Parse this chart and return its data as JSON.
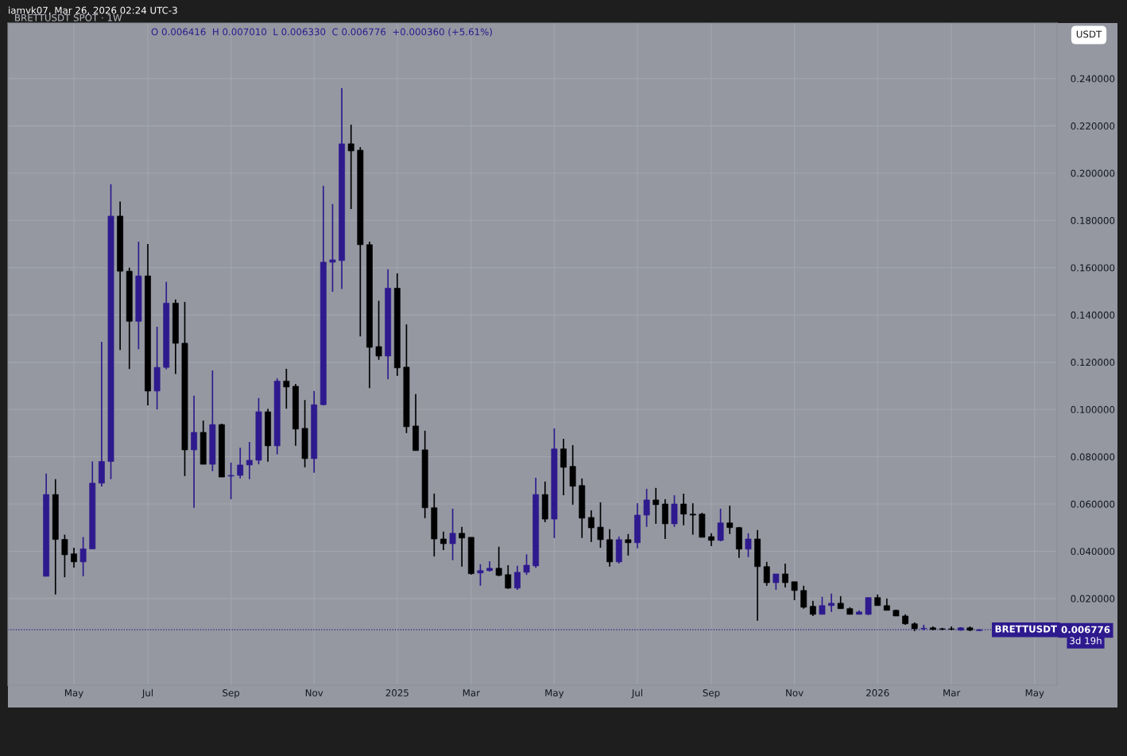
{
  "chart_data": {
    "type": "candlestick",
    "title": "BRETTUSDT SPOT · 1W",
    "annotations": [
      "iamvk07, Mar 26, 2026 02:24 UTC-3",
      "O 0.006416  H 0.007010  L 0.006330  C 0.006776  +0.000360 (+5.61%)",
      "USDT",
      "0.006776",
      "3d 19h"
    ],
    "x": [
      "2024-04-15",
      "2024-04-22",
      "2024-04-29",
      "2024-05-06",
      "2024-05-13",
      "2024-05-20",
      "2024-05-27",
      "2024-06-03",
      "2024-06-10",
      "2024-06-17",
      "2024-06-24",
      "2024-07-01",
      "2024-07-08",
      "2024-07-15",
      "2024-07-22",
      "2024-07-29",
      "2024-08-05",
      "2024-08-12",
      "2024-08-19",
      "2024-08-26",
      "2024-09-02",
      "2024-09-09",
      "2024-09-16",
      "2024-09-23",
      "2024-09-30",
      "2024-10-07",
      "2024-10-14",
      "2024-10-21",
      "2024-10-28",
      "2024-11-04",
      "2024-11-11",
      "2024-11-18",
      "2024-11-25",
      "2024-12-02",
      "2024-12-09",
      "2024-12-16",
      "2024-12-23",
      "2024-12-30",
      "2025-01-06",
      "2025-01-13",
      "2025-01-20",
      "2025-01-27",
      "2025-02-03",
      "2025-02-10",
      "2025-02-17",
      "2025-02-24",
      "2025-03-03",
      "2025-03-10",
      "2025-03-17",
      "2025-03-24",
      "2025-03-31",
      "2025-04-07",
      "2025-04-14",
      "2025-04-21",
      "2025-04-28",
      "2025-05-05",
      "2025-05-12",
      "2025-05-19",
      "2025-05-26",
      "2025-06-02",
      "2025-06-09",
      "2025-06-16",
      "2025-06-23",
      "2025-06-30",
      "2025-07-07",
      "2025-07-14",
      "2025-07-21",
      "2025-07-28",
      "2025-08-04",
      "2025-08-11",
      "2025-08-18",
      "2025-08-25",
      "2025-09-01",
      "2025-09-08",
      "2025-09-15",
      "2025-09-22",
      "2025-09-29",
      "2025-10-06",
      "2025-10-13",
      "2025-10-20",
      "2025-10-27",
      "2025-11-03",
      "2025-11-10",
      "2025-11-17",
      "2025-11-24",
      "2025-12-01",
      "2025-12-08",
      "2025-12-15",
      "2025-12-22",
      "2025-12-29",
      "2026-01-05",
      "2026-01-12",
      "2026-01-19",
      "2026-01-26",
      "2026-02-02",
      "2026-02-09",
      "2026-02-16",
      "2026-02-23",
      "2026-03-02",
      "2026-03-09",
      "2026-03-16",
      "2026-03-23"
    ],
    "ohlc": [
      [
        0.0294,
        0.0729,
        0.0294,
        0.064
      ],
      [
        0.064,
        0.0705,
        0.0217,
        0.045
      ],
      [
        0.045,
        0.047,
        0.029,
        0.0385
      ],
      [
        0.0389,
        0.0415,
        0.0331,
        0.0355
      ],
      [
        0.0355,
        0.046,
        0.0294,
        0.041
      ],
      [
        0.041,
        0.078,
        0.041,
        0.0688
      ],
      [
        0.0688,
        0.1286,
        0.0674,
        0.078
      ],
      [
        0.078,
        0.1953,
        0.0705,
        0.1818
      ],
      [
        0.1818,
        0.188,
        0.1252,
        0.1585
      ],
      [
        0.1585,
        0.16,
        0.1171,
        0.1373
      ],
      [
        0.1373,
        0.171,
        0.1255,
        0.1565
      ],
      [
        0.1565,
        0.17,
        0.1017,
        0.1078
      ],
      [
        0.1078,
        0.135,
        0.1,
        0.1178
      ],
      [
        0.1178,
        0.154,
        0.117,
        0.145
      ],
      [
        0.145,
        0.1465,
        0.115,
        0.128
      ],
      [
        0.128,
        0.1455,
        0.0718,
        0.0829
      ],
      [
        0.0829,
        0.1058,
        0.0584,
        0.0903
      ],
      [
        0.0903,
        0.0953,
        0.0768,
        0.0768
      ],
      [
        0.0768,
        0.1165,
        0.0739,
        0.0936
      ],
      [
        0.0936,
        0.094,
        0.0714,
        0.0714
      ],
      [
        0.0718,
        0.0775,
        0.062,
        0.0721
      ],
      [
        0.0721,
        0.0838,
        0.0708,
        0.0765
      ],
      [
        0.0765,
        0.0862,
        0.0705,
        0.0785
      ],
      [
        0.0785,
        0.1048,
        0.0768,
        0.099
      ],
      [
        0.099,
        0.1003,
        0.0779,
        0.0846
      ],
      [
        0.0846,
        0.1132,
        0.081,
        0.112
      ],
      [
        0.112,
        0.1172,
        0.1003,
        0.1095
      ],
      [
        0.1098,
        0.1108,
        0.0846,
        0.0917
      ],
      [
        0.092,
        0.104,
        0.0755,
        0.0792
      ],
      [
        0.0792,
        0.1078,
        0.0732,
        0.102
      ],
      [
        0.102,
        0.1946,
        0.1017,
        0.1623
      ],
      [
        0.1623,
        0.1869,
        0.1498,
        0.1633
      ],
      [
        0.163,
        0.236,
        0.151,
        0.2124
      ],
      [
        0.2124,
        0.2205,
        0.1848,
        0.2094
      ],
      [
        0.2097,
        0.211,
        0.1309,
        0.1697
      ],
      [
        0.1697,
        0.171,
        0.109,
        0.1263
      ],
      [
        0.1266,
        0.146,
        0.121,
        0.1226
      ],
      [
        0.1226,
        0.1593,
        0.1128,
        0.1513
      ],
      [
        0.1513,
        0.1576,
        0.1142,
        0.1176
      ],
      [
        0.1179,
        0.136,
        0.09,
        0.0927
      ],
      [
        0.093,
        0.1065,
        0.0826,
        0.0826
      ],
      [
        0.0829,
        0.091,
        0.054,
        0.0584
      ],
      [
        0.0584,
        0.0644,
        0.0378,
        0.0452
      ],
      [
        0.0452,
        0.0483,
        0.0405,
        0.0432
      ],
      [
        0.0432,
        0.058,
        0.0362,
        0.0476
      ],
      [
        0.0476,
        0.0503,
        0.0335,
        0.0456
      ],
      [
        0.0459,
        0.0459,
        0.0301,
        0.0305
      ],
      [
        0.0308,
        0.0345,
        0.0254,
        0.0318
      ],
      [
        0.0318,
        0.0358,
        0.0314,
        0.0328
      ],
      [
        0.0328,
        0.0419,
        0.0294,
        0.0298
      ],
      [
        0.0301,
        0.0341,
        0.0241,
        0.0244
      ],
      [
        0.0244,
        0.0338,
        0.0237,
        0.0311
      ],
      [
        0.0311,
        0.0387,
        0.03,
        0.0341
      ],
      [
        0.0338,
        0.0711,
        0.033,
        0.064
      ],
      [
        0.064,
        0.0695,
        0.0523,
        0.0536
      ],
      [
        0.0536,
        0.092,
        0.0456,
        0.0833
      ],
      [
        0.0833,
        0.0876,
        0.0637,
        0.0755
      ],
      [
        0.0759,
        0.0849,
        0.0597,
        0.0675
      ],
      [
        0.0678,
        0.0708,
        0.0456,
        0.054
      ],
      [
        0.0543,
        0.0573,
        0.0439,
        0.0499
      ],
      [
        0.0502,
        0.0607,
        0.0415,
        0.0449
      ],
      [
        0.0449,
        0.0493,
        0.0335,
        0.0355
      ],
      [
        0.0355,
        0.0462,
        0.0348,
        0.0449
      ],
      [
        0.0449,
        0.0473,
        0.0382,
        0.0436
      ],
      [
        0.0436,
        0.0603,
        0.0412,
        0.0553
      ],
      [
        0.0553,
        0.0664,
        0.0503,
        0.0617
      ],
      [
        0.0617,
        0.0668,
        0.0516,
        0.0597
      ],
      [
        0.06,
        0.062,
        0.0452,
        0.0516
      ],
      [
        0.0516,
        0.0637,
        0.0503,
        0.06
      ],
      [
        0.06,
        0.0644,
        0.051,
        0.0557
      ],
      [
        0.0557,
        0.0603,
        0.047,
        0.0553
      ],
      [
        0.0557,
        0.0563,
        0.0459,
        0.0459
      ],
      [
        0.0462,
        0.0476,
        0.0422,
        0.0446
      ],
      [
        0.0446,
        0.058,
        0.0442,
        0.052
      ],
      [
        0.052,
        0.0593,
        0.0473,
        0.05
      ],
      [
        0.05,
        0.0503,
        0.0372,
        0.0409
      ],
      [
        0.0409,
        0.0476,
        0.0375,
        0.0452
      ],
      [
        0.0452,
        0.049,
        0.0106,
        0.0335
      ],
      [
        0.0335,
        0.0355,
        0.0254,
        0.0267
      ],
      [
        0.0267,
        0.0304,
        0.0237,
        0.0304
      ],
      [
        0.0304,
        0.0348,
        0.0247,
        0.0267
      ],
      [
        0.0271,
        0.0271,
        0.0193,
        0.0234
      ],
      [
        0.0234,
        0.0254,
        0.0157,
        0.0163
      ],
      [
        0.0167,
        0.019,
        0.0126,
        0.0133
      ],
      [
        0.0133,
        0.0207,
        0.0133,
        0.017
      ],
      [
        0.017,
        0.0221,
        0.0143,
        0.018
      ],
      [
        0.018,
        0.021,
        0.0157,
        0.0157
      ],
      [
        0.0157,
        0.0163,
        0.0133,
        0.0133
      ],
      [
        0.0133,
        0.015,
        0.0133,
        0.0143
      ],
      [
        0.0133,
        0.0204,
        0.013,
        0.0204
      ],
      [
        0.0204,
        0.0217,
        0.017,
        0.017
      ],
      [
        0.017,
        0.02,
        0.015,
        0.015
      ],
      [
        0.015,
        0.0153,
        0.0126,
        0.0126
      ],
      [
        0.0126,
        0.0133,
        0.0089,
        0.0093
      ],
      [
        0.0093,
        0.0099,
        0.0062,
        0.0072
      ],
      [
        0.0072,
        0.0089,
        0.0066,
        0.0074
      ],
      [
        0.0076,
        0.0082,
        0.0066,
        0.0069
      ],
      [
        0.0072,
        0.0076,
        0.0066,
        0.007
      ],
      [
        0.0072,
        0.0082,
        0.0065,
        0.007
      ],
      [
        0.0066,
        0.0079,
        0.0064,
        0.0076
      ],
      [
        0.0076,
        0.0082,
        0.0062,
        0.0066
      ],
      [
        0.006416,
        0.00701,
        0.00633,
        0.006776
      ]
    ],
    "colors": [
      "#2e1a8e",
      "#000000",
      "#000000",
      "#000000",
      "#2e1a8e",
      "#2e1a8e",
      "#2e1a8e",
      "#2e1a8e",
      "#000000",
      "#000000",
      "#2e1a8e",
      "#000000",
      "#2e1a8e",
      "#2e1a8e",
      "#000000",
      "#000000",
      "#2e1a8e",
      "#000000",
      "#2e1a8e",
      "#000000",
      "#2e1a8e",
      "#2e1a8e",
      "#2e1a8e",
      "#2e1a8e",
      "#000000",
      "#2e1a8e",
      "#000000",
      "#000000",
      "#000000",
      "#2e1a8e",
      "#2e1a8e",
      "#2e1a8e",
      "#2e1a8e",
      "#000000",
      "#000000",
      "#000000",
      "#000000",
      "#2e1a8e",
      "#000000",
      "#000000",
      "#000000",
      "#000000",
      "#000000",
      "#000000",
      "#2e1a8e",
      "#000000",
      "#000000",
      "#2e1a8e",
      "#2e1a8e",
      "#000000",
      "#000000",
      "#2e1a8e",
      "#2e1a8e",
      "#2e1a8e",
      "#000000",
      "#2e1a8e",
      "#000000",
      "#000000",
      "#000000",
      "#000000",
      "#000000",
      "#000000",
      "#2e1a8e",
      "#000000",
      "#2e1a8e",
      "#2e1a8e",
      "#000000",
      "#000000",
      "#2e1a8e",
      "#000000",
      "#000000",
      "#000000",
      "#000000",
      "#2e1a8e",
      "#000000",
      "#000000",
      "#2e1a8e",
      "#000000",
      "#000000",
      "#2e1a8e",
      "#000000",
      "#000000",
      "#000000",
      "#000000",
      "#2e1a8e",
      "#2e1a8e",
      "#000000",
      "#000000",
      "#2e1a8e",
      "#2e1a8e",
      "#000000",
      "#000000",
      "#000000",
      "#000000",
      "#000000",
      "#2e1a8e",
      "#000000",
      "#000000",
      "#000000",
      "#2e1a8e",
      "#000000",
      "#2e1a8e"
    ],
    "xlim": [
      "2024-03-17",
      "2026-05-21"
    ],
    "xticks": [
      {
        "value": "2024-05-06",
        "label": "May"
      },
      {
        "value": "2024-07-01",
        "label": "Jul"
      },
      {
        "value": "2024-09-02",
        "label": "Sep"
      },
      {
        "value": "2024-11-04",
        "label": "Nov"
      },
      {
        "value": "2025-01-06",
        "label": "2025"
      },
      {
        "value": "2025-03-03",
        "label": "Mar"
      },
      {
        "value": "2025-05-05",
        "label": "May"
      },
      {
        "value": "2025-07-07",
        "label": "Jul"
      },
      {
        "value": "2025-09-01",
        "label": "Sep"
      },
      {
        "value": "2025-11-03",
        "label": "Nov"
      },
      {
        "value": "2026-01-05",
        "label": "2026"
      },
      {
        "value": "2026-03-02",
        "label": "Mar"
      },
      {
        "value": "2026-05-04",
        "label": "May"
      }
    ],
    "ylim": [
      -0.0167,
      0.2635
    ],
    "yticks": [
      {
        "value": 0.02,
        "label": "0.020000"
      },
      {
        "value": 0.04,
        "label": "0.040000"
      },
      {
        "value": 0.06,
        "label": "0.060000"
      },
      {
        "value": 0.08,
        "label": "0.080000"
      },
      {
        "value": 0.1,
        "label": "0.100000"
      },
      {
        "value": 0.12,
        "label": "0.120000"
      },
      {
        "value": 0.14,
        "label": "0.140000"
      },
      {
        "value": 0.16,
        "label": "0.160000"
      },
      {
        "value": 0.18,
        "label": "0.180000"
      },
      {
        "value": 0.2,
        "label": "0.200000"
      },
      {
        "value": 0.22,
        "label": "0.220000"
      },
      {
        "value": 0.24,
        "label": "0.240000"
      }
    ],
    "ref_lines": [
      {
        "axis": "y",
        "value": 0.006776,
        "label": "BRETTUSDT",
        "color": "#2e1a8e",
        "line_style": "dotted"
      }
    ],
    "grid": true
  }
}
